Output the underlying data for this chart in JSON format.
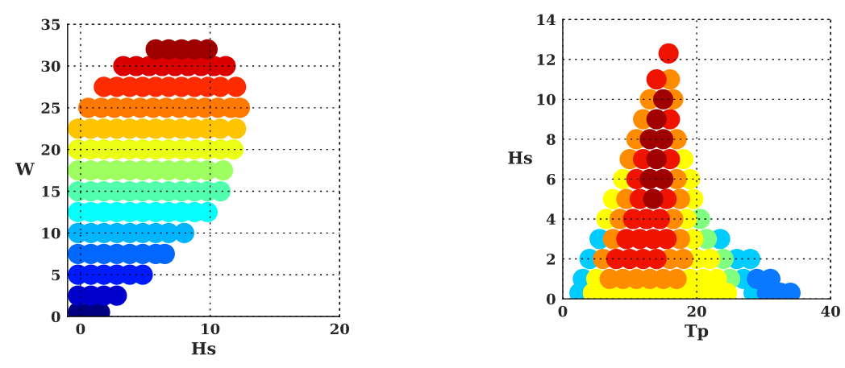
{
  "chart_data": [
    {
      "type": "scatter",
      "xlabel": "Hs",
      "ylabel": "W",
      "xlim": [
        -1,
        20
      ],
      "ylim": [
        0,
        35
      ],
      "xticks": [
        0,
        10,
        20
      ],
      "yticks": [
        0,
        5,
        10,
        15,
        20,
        25,
        30,
        35
      ],
      "grid": true,
      "marker": "circle",
      "series": [
        {
          "color": "#000080",
          "x": [
            -0.2,
            0.7,
            1.5
          ],
          "values": [
            0.5,
            0.5,
            0.5
          ]
        },
        {
          "color": "#0000cc",
          "x": [
            -0.2,
            0.8,
            1.8,
            2.8
          ],
          "values": [
            2.5,
            2.5,
            2.5,
            2.5
          ]
        },
        {
          "color": "#001aff",
          "x": [
            -0.2,
            0.8,
            1.8,
            2.8,
            3.8,
            4.8
          ],
          "values": [
            5,
            5,
            5,
            5,
            5,
            5
          ]
        },
        {
          "color": "#0068ff",
          "x": [
            -0.2,
            0.8,
            1.8,
            2.8,
            3.8,
            4.8,
            5.8,
            6.5
          ],
          "values": [
            7.5,
            7.5,
            7.5,
            7.5,
            7.5,
            7.5,
            7.5,
            7.5
          ]
        },
        {
          "color": "#00b5ff",
          "x": [
            -0.2,
            0.8,
            1.8,
            2.8,
            3.8,
            4.8,
            5.8,
            6.8,
            8.0
          ],
          "values": [
            10,
            10,
            10,
            10,
            10,
            10,
            10,
            10,
            10
          ]
        },
        {
          "color": "#05fffa",
          "x": [
            -0.2,
            0.8,
            1.8,
            2.8,
            3.8,
            4.8,
            5.8,
            6.8,
            7.8,
            8.8,
            9.8
          ],
          "values": [
            12.5,
            12.5,
            12.5,
            12.5,
            12.5,
            12.5,
            12.5,
            12.5,
            12.5,
            12.5,
            12.5
          ]
        },
        {
          "color": "#52ffad",
          "x": [
            -0.2,
            0.8,
            1.8,
            2.8,
            3.8,
            4.8,
            5.8,
            6.8,
            7.8,
            8.8,
            9.8,
            10.8
          ],
          "values": [
            15,
            15,
            15,
            15,
            15,
            15,
            15,
            15,
            15,
            15,
            15,
            15
          ]
        },
        {
          "color": "#9eff61",
          "x": [
            -0.2,
            0.8,
            1.8,
            2.8,
            3.8,
            4.8,
            5.8,
            6.8,
            7.8,
            8.8,
            9.8,
            11.0
          ],
          "values": [
            17.5,
            17.5,
            17.5,
            17.5,
            17.5,
            17.5,
            17.5,
            17.5,
            17.5,
            17.5,
            17.5,
            17.5
          ]
        },
        {
          "color": "#ebff14",
          "x": [
            -0.2,
            0.8,
            1.8,
            2.8,
            3.8,
            4.8,
            5.8,
            6.8,
            7.8,
            8.8,
            9.8,
            10.8,
            11.8
          ],
          "values": [
            20,
            20,
            20,
            20,
            20,
            20,
            20,
            20,
            20,
            20,
            20,
            20,
            20
          ]
        },
        {
          "color": "#ffc400",
          "x": [
            -0.2,
            0.8,
            1.8,
            2.8,
            3.8,
            4.8,
            5.8,
            6.8,
            7.8,
            8.8,
            9.8,
            10.8,
            12.0
          ],
          "values": [
            22.5,
            22.5,
            22.5,
            22.5,
            22.5,
            22.5,
            22.5,
            22.5,
            22.5,
            22.5,
            22.5,
            22.5,
            22.5
          ]
        },
        {
          "color": "#ff7800",
          "x": [
            0.6,
            1.6,
            2.6,
            3.6,
            4.6,
            5.6,
            6.6,
            7.6,
            8.6,
            9.6,
            10.6,
            11.6,
            12.3
          ],
          "values": [
            25,
            25,
            25,
            25,
            25,
            25,
            25,
            25,
            25,
            25,
            25,
            25,
            25
          ]
        },
        {
          "color": "#ff2b00",
          "x": [
            1.8,
            2.8,
            3.8,
            4.8,
            5.8,
            6.8,
            7.8,
            8.8,
            9.8,
            10.8,
            12.0
          ],
          "values": [
            27.5,
            27.5,
            27.5,
            27.5,
            27.5,
            27.5,
            27.5,
            27.5,
            27.5,
            27.5,
            27.5
          ]
        },
        {
          "color": "#db0000",
          "x": [
            3.3,
            4.3,
            5.3,
            6.3,
            7.3,
            8.3,
            9.3,
            10.3,
            11.2
          ],
          "values": [
            30,
            30,
            30,
            30,
            30,
            30,
            30,
            30,
            30
          ]
        },
        {
          "color": "#9e0000",
          "x": [
            5.8,
            6.8,
            7.8,
            8.8,
            9.8
          ],
          "values": [
            32,
            32,
            32,
            32,
            32
          ]
        }
      ]
    },
    {
      "type": "scatter",
      "xlabel": "Tp",
      "ylabel": "Hs",
      "xlim": [
        0,
        40
      ],
      "ylim": [
        0,
        14
      ],
      "xticks": [
        0,
        20,
        40
      ],
      "yticks": [
        0,
        2,
        4,
        6,
        8,
        10,
        12,
        14
      ],
      "grid": true,
      "marker": "circle",
      "series": [
        {
          "color": "#00ccff",
          "x": [
            2.5,
            28.5,
            3,
            27,
            4,
            26,
            28,
            5.5,
            23.5
          ],
          "values": [
            0.3,
            0.3,
            1,
            1,
            2,
            2,
            2,
            3,
            3
          ]
        },
        {
          "color": "#0a78ff",
          "x": [
            30.5,
            32.5,
            34,
            29,
            31
          ],
          "values": [
            0.3,
            0.3,
            0.3,
            1,
            1
          ]
        },
        {
          "color": "#80ff80",
          "x": [
            25,
            24,
            21.5,
            20.5
          ],
          "values": [
            1,
            2,
            3,
            4
          ]
        },
        {
          "color": "#ffff00",
          "x": [
            4.5,
            6.5,
            8.5,
            10.5,
            12.5,
            14.5,
            16.5,
            18.5,
            20.5,
            22.5,
            24.5,
            5,
            19,
            21,
            23,
            20,
            22,
            19.5,
            6.5,
            18.5,
            7.5,
            19.5,
            9,
            19,
            18
          ],
          "values": [
            0.3,
            0.3,
            0.3,
            0.3,
            0.3,
            0.3,
            0.3,
            0.3,
            0.3,
            0.3,
            0.3,
            1,
            1,
            1,
            1,
            2,
            2,
            3,
            4,
            4,
            5,
            5,
            6,
            6,
            7
          ]
        },
        {
          "color": "#ff8c00",
          "x": [
            7,
            9,
            11,
            13,
            15,
            17,
            6,
            16,
            18,
            7.5,
            17.5,
            8.5,
            16.5,
            9.5,
            17.5,
            17,
            10,
            11,
            17,
            12,
            13,
            16.5,
            16
          ],
          "values": [
            1,
            1,
            1,
            1,
            1,
            1,
            2,
            2,
            2,
            3,
            3,
            4,
            4,
            5,
            5,
            6,
            7,
            8,
            8,
            9,
            10,
            10,
            11
          ]
        },
        {
          "color": "#f01400",
          "x": [
            8,
            10,
            12,
            14,
            9.5,
            11.5,
            13.5,
            15.5,
            10.5,
            12.5,
            14.5,
            11.5,
            15.5,
            11,
            12,
            16,
            16,
            14,
            15.8
          ],
          "values": [
            2,
            2,
            2,
            2,
            3,
            3,
            3,
            3,
            4,
            4,
            4,
            5,
            5,
            6,
            7,
            7,
            9,
            11,
            12.3
          ]
        },
        {
          "color": "#a00000",
          "x": [
            13.5,
            13,
            15,
            14,
            13,
            15,
            14,
            15
          ],
          "values": [
            5,
            6,
            6,
            7,
            8,
            8,
            9,
            10
          ]
        }
      ]
    }
  ]
}
